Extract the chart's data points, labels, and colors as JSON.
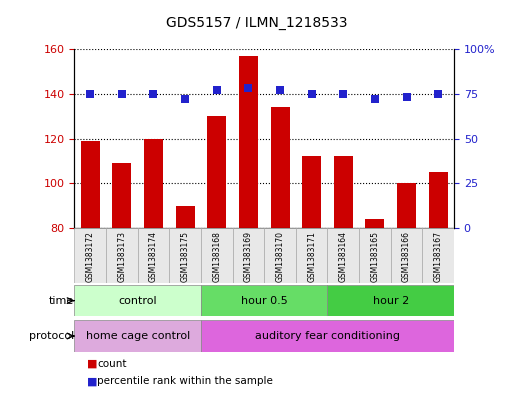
{
  "title": "GDS5157 / ILMN_1218533",
  "samples": [
    "GSM1383172",
    "GSM1383173",
    "GSM1383174",
    "GSM1383175",
    "GSM1383168",
    "GSM1383169",
    "GSM1383170",
    "GSM1383171",
    "GSM1383164",
    "GSM1383165",
    "GSM1383166",
    "GSM1383167"
  ],
  "counts": [
    119,
    109,
    120,
    90,
    130,
    157,
    134,
    112,
    112,
    84,
    100,
    105
  ],
  "percentiles": [
    75,
    75,
    75,
    72,
    77,
    78,
    77,
    75,
    75,
    72,
    73,
    75
  ],
  "ylim_left": [
    80,
    160
  ],
  "ylim_right": [
    0,
    100
  ],
  "yticks_left": [
    80,
    100,
    120,
    140,
    160
  ],
  "yticks_right": [
    0,
    25,
    50,
    75,
    100
  ],
  "bar_color": "#cc0000",
  "dot_color": "#2222cc",
  "grid_color": "#000000",
  "time_groups": [
    {
      "label": "control",
      "start": 0,
      "end": 4,
      "color": "#ccffcc"
    },
    {
      "label": "hour 0.5",
      "start": 4,
      "end": 8,
      "color": "#66dd66"
    },
    {
      "label": "hour 2",
      "start": 8,
      "end": 12,
      "color": "#44cc44"
    }
  ],
  "protocol_groups": [
    {
      "label": "home cage control",
      "start": 0,
      "end": 4,
      "color": "#ddaadd"
    },
    {
      "label": "auditory fear conditioning",
      "start": 4,
      "end": 12,
      "color": "#dd66dd"
    }
  ],
  "legend_count_label": "count",
  "legend_pct_label": "percentile rank within the sample",
  "bar_color_legend": "#cc0000",
  "dot_color_legend": "#2222cc",
  "axis_label_color_left": "#cc0000",
  "axis_label_color_right": "#2222cc",
  "bar_width": 0.6,
  "dot_size": 30,
  "time_label": "time",
  "protocol_label": "protocol",
  "xlabel_fontsize": 6.5,
  "ylabel_fontsize": 8,
  "title_fontsize": 10
}
